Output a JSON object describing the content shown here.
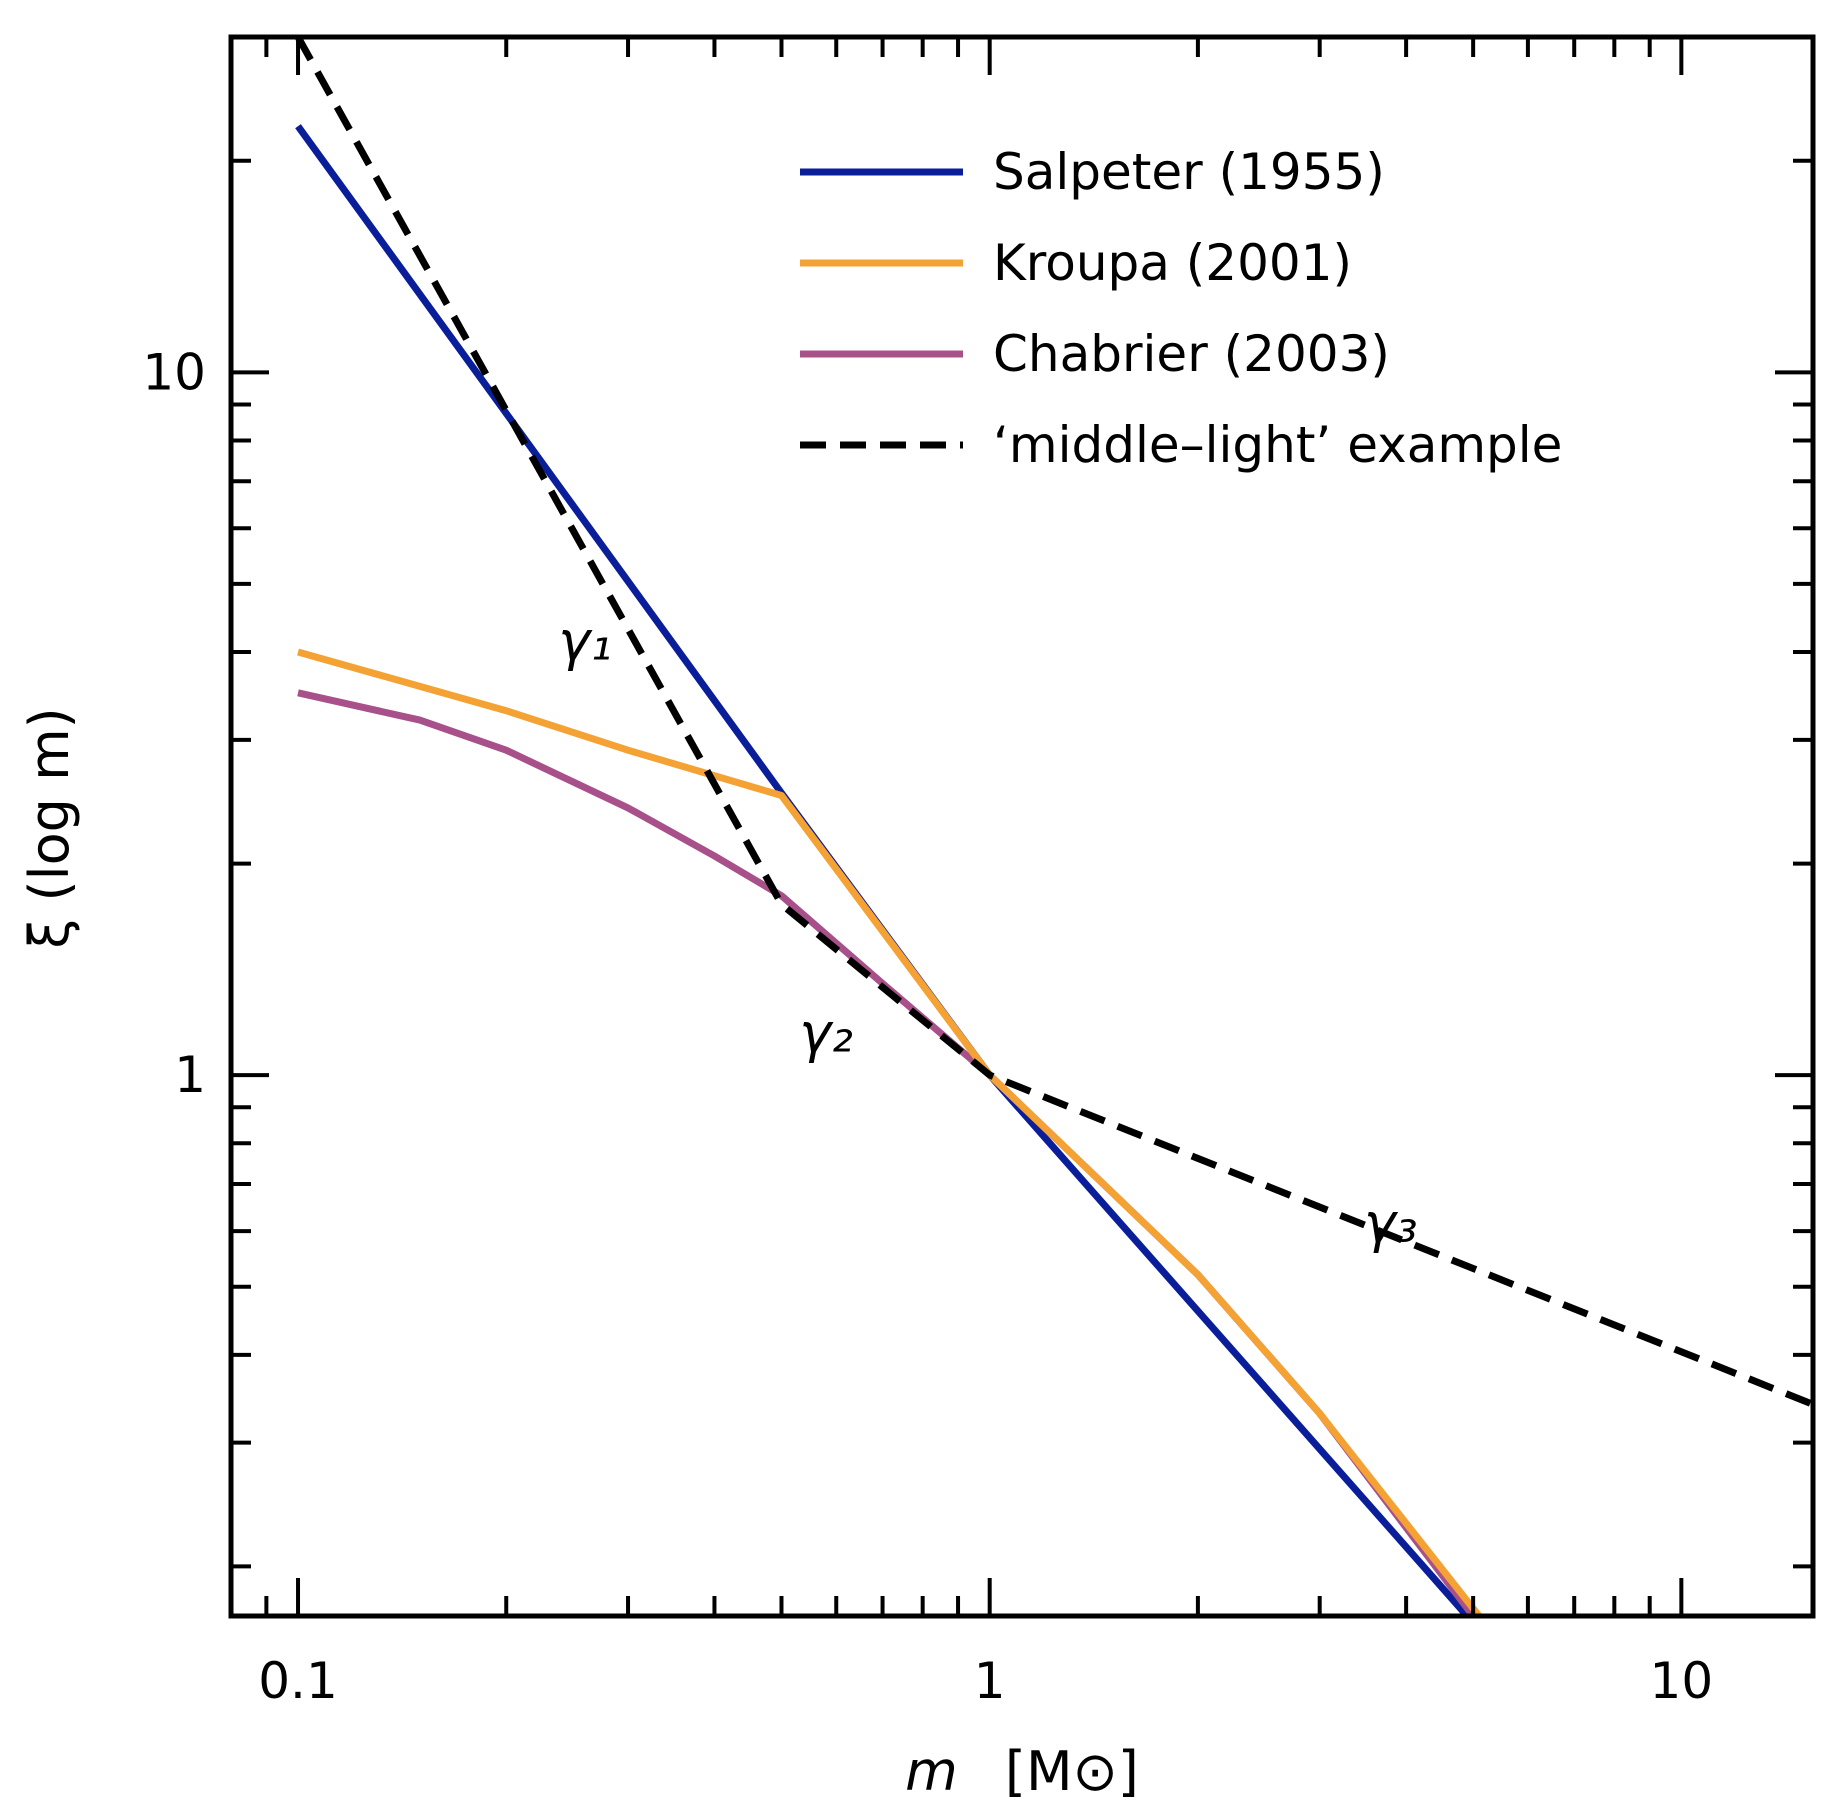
{
  "chart_data": {
    "type": "line",
    "title": "",
    "xlabel_var": "m",
    "xlabel_unit": "[M⊙]",
    "ylabel": "ξ (log m)",
    "x_scale": "log",
    "y_scale": "log",
    "xlim": [
      0.08,
      15.5
    ],
    "ylim": [
      0.17,
      30
    ],
    "x_ticks": [
      0.1,
      1,
      10
    ],
    "x_tick_labels": [
      "0.1",
      "1",
      "10"
    ],
    "y_ticks": [
      1,
      10
    ],
    "y_tick_labels": [
      "1",
      "10"
    ],
    "legend_position": "top-right",
    "series": [
      {
        "name": "Salpeter (1955)",
        "color": "#0a1e9a",
        "style": "solid",
        "x": [
          0.1,
          0.5,
          1,
          4.9
        ],
        "y": [
          22.4,
          2.52,
          1.0,
          0.17
        ]
      },
      {
        "name": "Kroupa (2001)",
        "color": "#f4a233",
        "style": "solid",
        "x": [
          0.1,
          0.2,
          0.3,
          0.5,
          1,
          2,
          3,
          5.1
        ],
        "y": [
          4.0,
          3.3,
          2.9,
          2.5,
          1.0,
          0.52,
          0.33,
          0.17
        ]
      },
      {
        "name": "Chabrier (2003)",
        "color": "#a8508a",
        "style": "solid",
        "x": [
          0.1,
          0.15,
          0.2,
          0.3,
          0.4,
          0.5,
          0.7,
          1,
          2,
          3,
          5.0
        ],
        "y": [
          3.5,
          3.2,
          2.9,
          2.4,
          2.05,
          1.8,
          1.35,
          1.0,
          0.52,
          0.33,
          0.17
        ]
      },
      {
        "name": "‘middle–light’ example",
        "color": "#000000",
        "style": "dashed",
        "x": [
          0.1,
          0.5,
          1,
          15.5
        ],
        "y": [
          30,
          1.75,
          1.0,
          0.34
        ]
      }
    ],
    "annotations": [
      {
        "text": "γ₁",
        "x": 0.26,
        "y": 3.9
      },
      {
        "text": "γ₂",
        "x": 0.58,
        "y": 1.08
      },
      {
        "text": "γ₃",
        "x": 3.8,
        "y": 0.58
      }
    ]
  }
}
